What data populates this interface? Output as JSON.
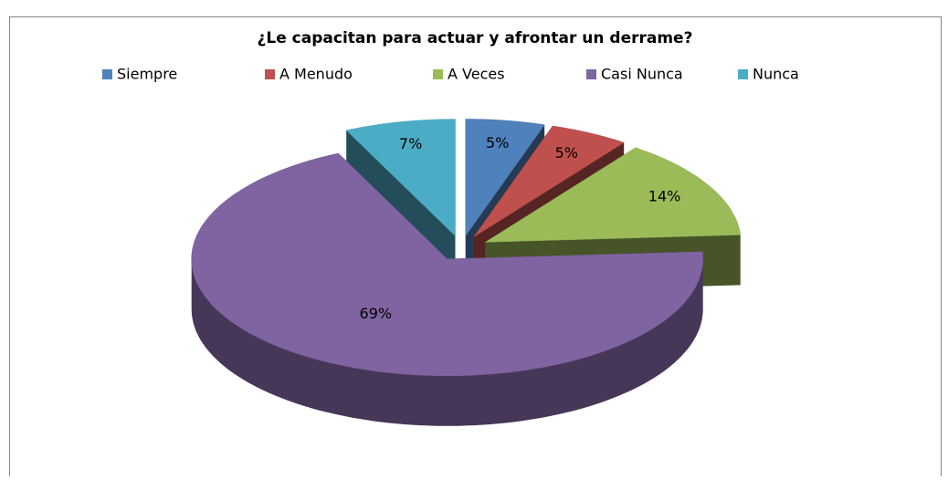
{
  "chart_data": {
    "type": "pie3d",
    "title": "¿Le capacitan para actuar y afrontar un derrame?",
    "categories": [
      "Siempre",
      "A Menudo",
      "A Veces",
      "Casi Nunca",
      "Nunca"
    ],
    "values": [
      5,
      5,
      14,
      69,
      7
    ],
    "value_labels": [
      "5%",
      "5%",
      "14%",
      "69%",
      "7%"
    ],
    "colors": [
      "#4f81bd",
      "#c0504d",
      "#9bbb59",
      "#8064a2",
      "#4bacc6"
    ],
    "legend": "top"
  }
}
